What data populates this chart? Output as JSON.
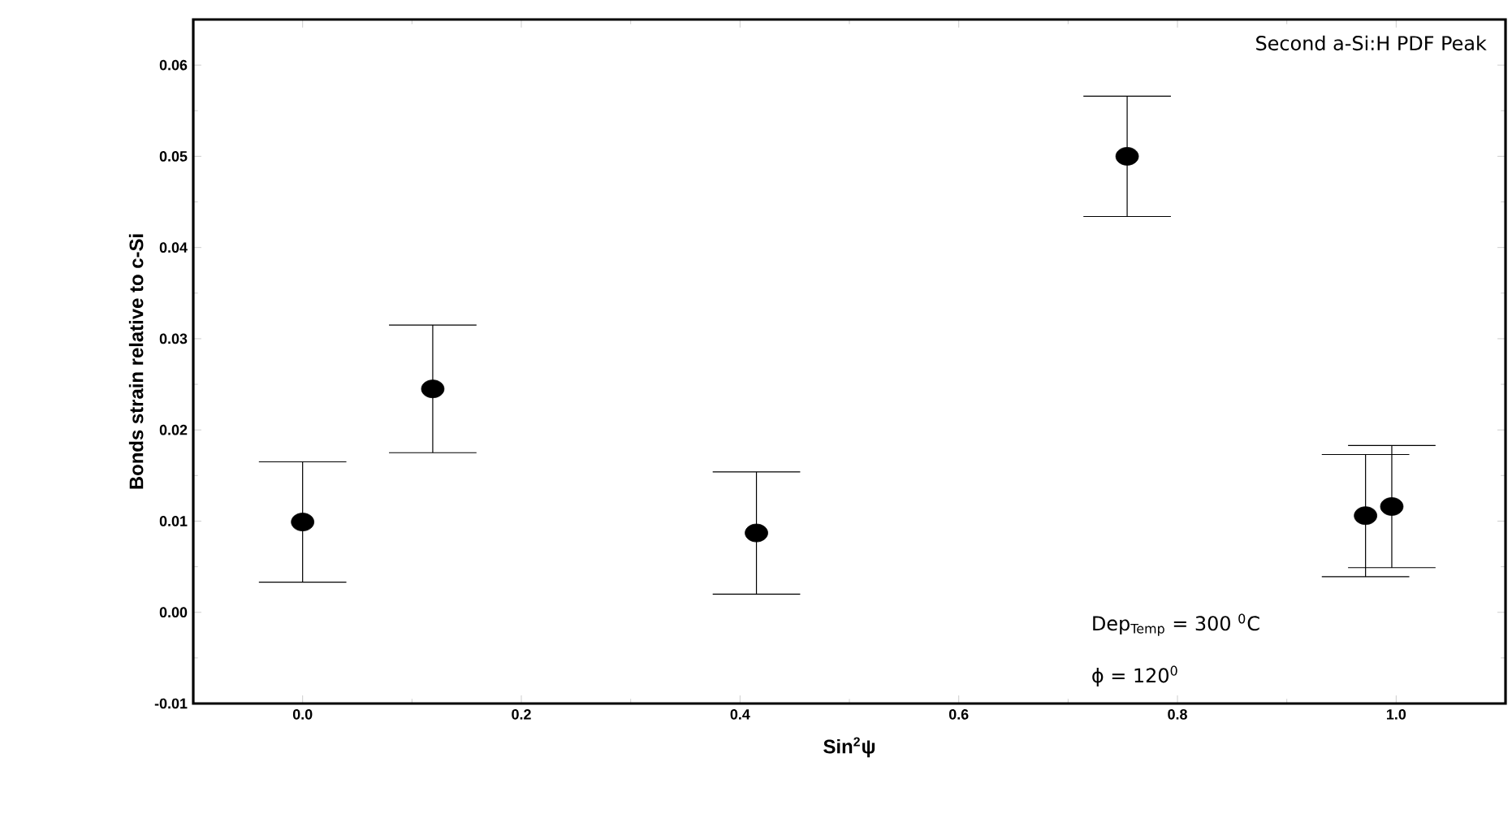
{
  "chart_data": {
    "type": "scatter",
    "xlabel": "**Sin**$^{2}$ψ",
    "ylabel": "Bonds strain relative to c-Si",
    "annotations": [
      "Second a-Si:H PDF Peak",
      "Dep$_{Temp}$ = 300 $^{0}$C",
      "ϕ = 120$^{0}$"
    ],
    "x": [
      0.0,
      0.119,
      0.415,
      0.754,
      0.972,
      0.996
    ],
    "series": [
      {
        "color": "#000000",
        "values": [
          0.0099,
          0.0245,
          0.0087,
          0.05,
          0.0106,
          0.0116
        ],
        "errors": [
          0.0066,
          0.007,
          0.0067,
          0.0066,
          0.0067,
          0.0067
        ]
      }
    ],
    "marker": "circle",
    "xlim": [
      -0.1,
      1.1
    ],
    "ylim": [
      -0.01,
      0.065
    ],
    "xticks": [
      {
        "value": 0,
        "label": "0.0"
      },
      {
        "value": 0.2,
        "label": "0.2"
      },
      {
        "value": 0.4,
        "label": "0.4"
      },
      {
        "value": 0.6,
        "label": "0.6"
      },
      {
        "value": 0.8,
        "label": "0.8"
      },
      {
        "value": 1.0,
        "label": "1.0"
      }
    ],
    "yticks": [
      {
        "value": -0.01,
        "label": "-0.01"
      },
      {
        "value": 0,
        "label": "0.00"
      },
      {
        "value": 0.01,
        "label": "0.01"
      },
      {
        "value": 0.02,
        "label": "0.02"
      },
      {
        "value": 0.03,
        "label": "0.03"
      },
      {
        "value": 0.04,
        "label": "0.04"
      },
      {
        "value": 0.05,
        "label": "0.05"
      },
      {
        "value": 0.06,
        "label": "0.06"
      }
    ]
  }
}
